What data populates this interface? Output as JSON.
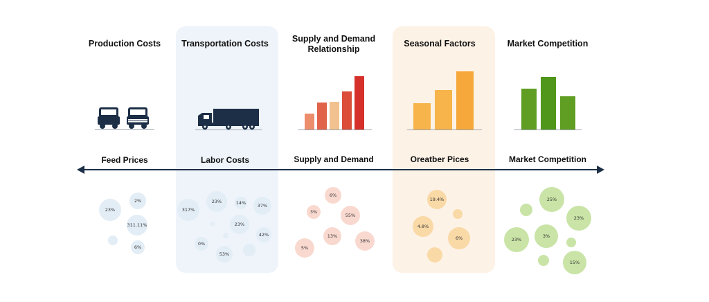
{
  "columns": [
    {
      "title": "Production Costs",
      "subtitle": "Feed Prices",
      "icon": "cars-icon"
    },
    {
      "title": "Transportation Costs",
      "subtitle": "Labor Costs",
      "icon": "truck-icon"
    },
    {
      "title": "Supply and Demand Relationship",
      "subtitle": "Supply and Demand",
      "icon": "bar-chart-icon"
    },
    {
      "title": "Seasonal Factors",
      "subtitle": "Oreatber Pices",
      "icon": "bar-chart-icon"
    },
    {
      "title": "Market Competition",
      "subtitle": "Market Competition",
      "icon": "bar-chart-icon"
    }
  ],
  "chart_data": [
    {
      "type": "bar",
      "colors": [
        "#ec8e6b",
        "#e0634a",
        "#f1c28f",
        "#db4c39",
        "#d6302a"
      ],
      "values": [
        0.3,
        0.5,
        0.52,
        0.72,
        1.0
      ]
    },
    {
      "type": "bar",
      "colors": [
        "#f6b44b",
        "#f6b44b",
        "#f6a93a"
      ],
      "values": [
        0.45,
        0.68,
        1.0
      ]
    },
    {
      "type": "bar",
      "colors": [
        "#5f9e22",
        "#4f961a",
        "#5f9e22"
      ],
      "values": [
        0.78,
        1.0,
        0.63
      ]
    }
  ],
  "bubbles": {
    "col1": [
      "23%",
      "2%",
      "311.11%",
      "6%"
    ],
    "col2": [
      "317%",
      "23%",
      "14%",
      "37%",
      "23%",
      "42%",
      "0%",
      "53%"
    ],
    "col3": [
      "6%",
      "3%",
      "55%",
      "13%",
      "38%",
      "5%"
    ],
    "col4": [
      "19.4%",
      "4.8%",
      "6%"
    ],
    "col5": [
      "25%",
      "23%",
      "23%",
      "3%",
      "15%"
    ]
  }
}
